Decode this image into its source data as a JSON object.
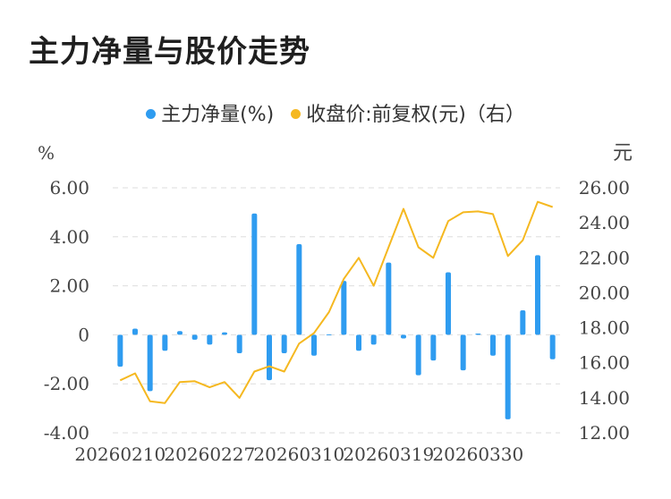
{
  "title": "主力净量与股价走势",
  "legend": {
    "series1": "主力净量(%)",
    "series2": "收盘价:前复权(元)（右）"
  },
  "colors": {
    "bar": "#2f9cf0",
    "line": "#f5b820",
    "grid": "#dddddd",
    "text": "#444444"
  },
  "chart_data": {
    "type": "bar+line",
    "left_axis": {
      "unit": "%",
      "min": -4,
      "max": 6,
      "ticks": [
        "6.00",
        "4.00",
        "2.00",
        "0",
        "-2.00",
        "-4.00"
      ]
    },
    "right_axis": {
      "unit": "元",
      "min": 12,
      "max": 26,
      "ticks": [
        "26.00",
        "24.00",
        "22.00",
        "20.00",
        "18.00",
        "16.00",
        "14.00",
        "12.00"
      ]
    },
    "x_tick_labels": [
      {
        "index": 0,
        "label": "20260210"
      },
      {
        "index": 6,
        "label": "20260227"
      },
      {
        "index": 12,
        "label": "20260310"
      },
      {
        "index": 18,
        "label": "20260319"
      },
      {
        "index": 24,
        "label": "20260330"
      }
    ],
    "series": [
      {
        "name": "主力净量(%)",
        "type": "bar",
        "values": [
          -1.3,
          0.25,
          -2.3,
          -0.65,
          0.15,
          -0.2,
          -0.4,
          0.1,
          -0.75,
          4.95,
          -1.85,
          -0.75,
          3.7,
          -0.85,
          0.02,
          2.2,
          -0.65,
          -0.4,
          2.95,
          -0.15,
          -1.65,
          -1.05,
          2.55,
          -1.45,
          0.05,
          -0.85,
          -3.45,
          1.0,
          3.25,
          -1.0
        ]
      },
      {
        "name": "收盘价:前复权(元)（右）",
        "type": "line",
        "values": [
          15.0,
          15.4,
          13.8,
          13.7,
          14.9,
          14.95,
          14.6,
          14.9,
          14.0,
          15.5,
          15.8,
          15.5,
          17.1,
          17.7,
          18.9,
          20.8,
          22.0,
          20.4,
          22.6,
          24.8,
          22.6,
          22.0,
          24.1,
          24.6,
          24.65,
          24.5,
          22.1,
          23.0,
          25.2,
          24.9
        ]
      }
    ],
    "grid": true,
    "legend_position": "top-center"
  }
}
